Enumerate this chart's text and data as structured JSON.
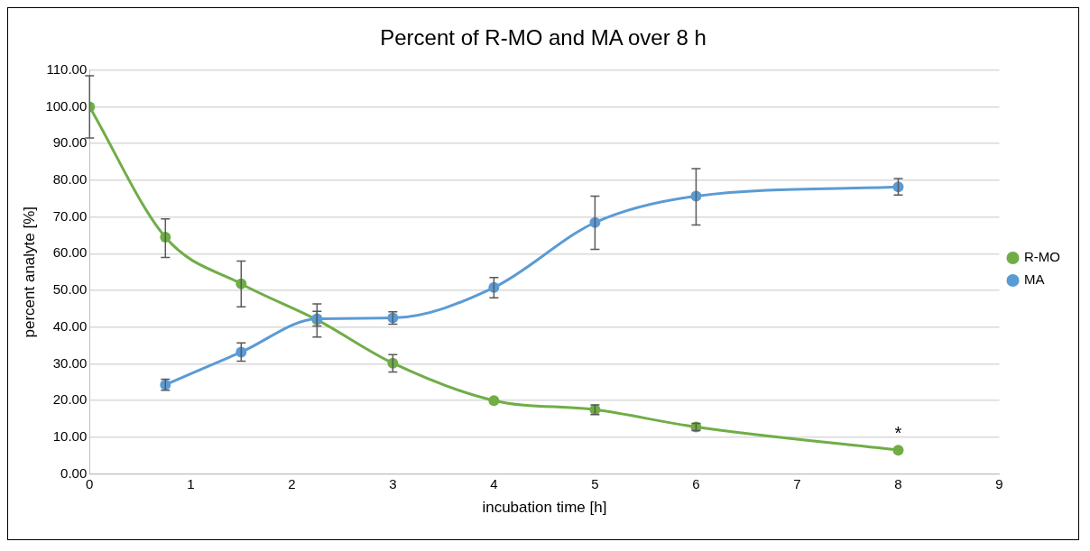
{
  "chart_data": {
    "type": "line",
    "title": "Percent of R-MO and MA over 8 h",
    "xlabel": "incubation time [h]",
    "ylabel": "percent analyte [%]",
    "xlim": [
      0,
      9
    ],
    "xticks": [
      0,
      1,
      2,
      3,
      4,
      5,
      6,
      7,
      8,
      9
    ],
    "ylim": [
      0,
      110
    ],
    "yticks": [
      {
        "value": 0,
        "label": "0.00"
      },
      {
        "value": 10,
        "label": "10.00"
      },
      {
        "value": 20,
        "label": "20.00"
      },
      {
        "value": 30,
        "label": "30.00"
      },
      {
        "value": 40,
        "label": "40.00"
      },
      {
        "value": 50,
        "label": "50.00"
      },
      {
        "value": 60,
        "label": "60.00"
      },
      {
        "value": 70,
        "label": "70.00"
      },
      {
        "value": 80,
        "label": "80.00"
      },
      {
        "value": 90,
        "label": "90.00"
      },
      {
        "value": 100,
        "label": "100.00"
      },
      {
        "value": 110,
        "label": "110.00"
      }
    ],
    "grid": "y",
    "legend": "right",
    "marker": "circle",
    "series": [
      {
        "name": "R-MO",
        "color": "#70ad47",
        "x": [
          0,
          0.75,
          1.5,
          2.25,
          3,
          4,
          5,
          6,
          8
        ],
        "values": [
          100,
          64.5,
          51.8,
          42,
          30.2,
          20,
          17.5,
          12.8,
          6.5
        ],
        "errors": [
          [
            91.5,
            108.5
          ],
          [
            59,
            69.5
          ],
          [
            45.5,
            58
          ],
          [
            37.3,
            46.3
          ],
          [
            27.8,
            32.5
          ],
          null,
          [
            16.2,
            18.8
          ],
          [
            11.8,
            13.8
          ],
          null
        ]
      },
      {
        "name": "MA",
        "color": "#5b9bd5",
        "x": [
          0.75,
          1.5,
          2.25,
          3,
          4,
          5,
          6,
          8
        ],
        "values": [
          24.3,
          33.2,
          42.3,
          42.5,
          50.8,
          68.5,
          75.7,
          78.2
        ],
        "errors": [
          [
            22.8,
            25.8
          ],
          [
            30.7,
            35.7
          ],
          [
            40.3,
            44.3
          ],
          [
            40.8,
            44.2
          ],
          [
            48,
            53.5
          ],
          [
            61.2,
            75.7
          ],
          [
            67.8,
            83.2
          ],
          [
            76,
            80.5
          ]
        ]
      }
    ],
    "annotations": [
      {
        "text": "*",
        "x": 8,
        "y": 6.5
      }
    ]
  }
}
